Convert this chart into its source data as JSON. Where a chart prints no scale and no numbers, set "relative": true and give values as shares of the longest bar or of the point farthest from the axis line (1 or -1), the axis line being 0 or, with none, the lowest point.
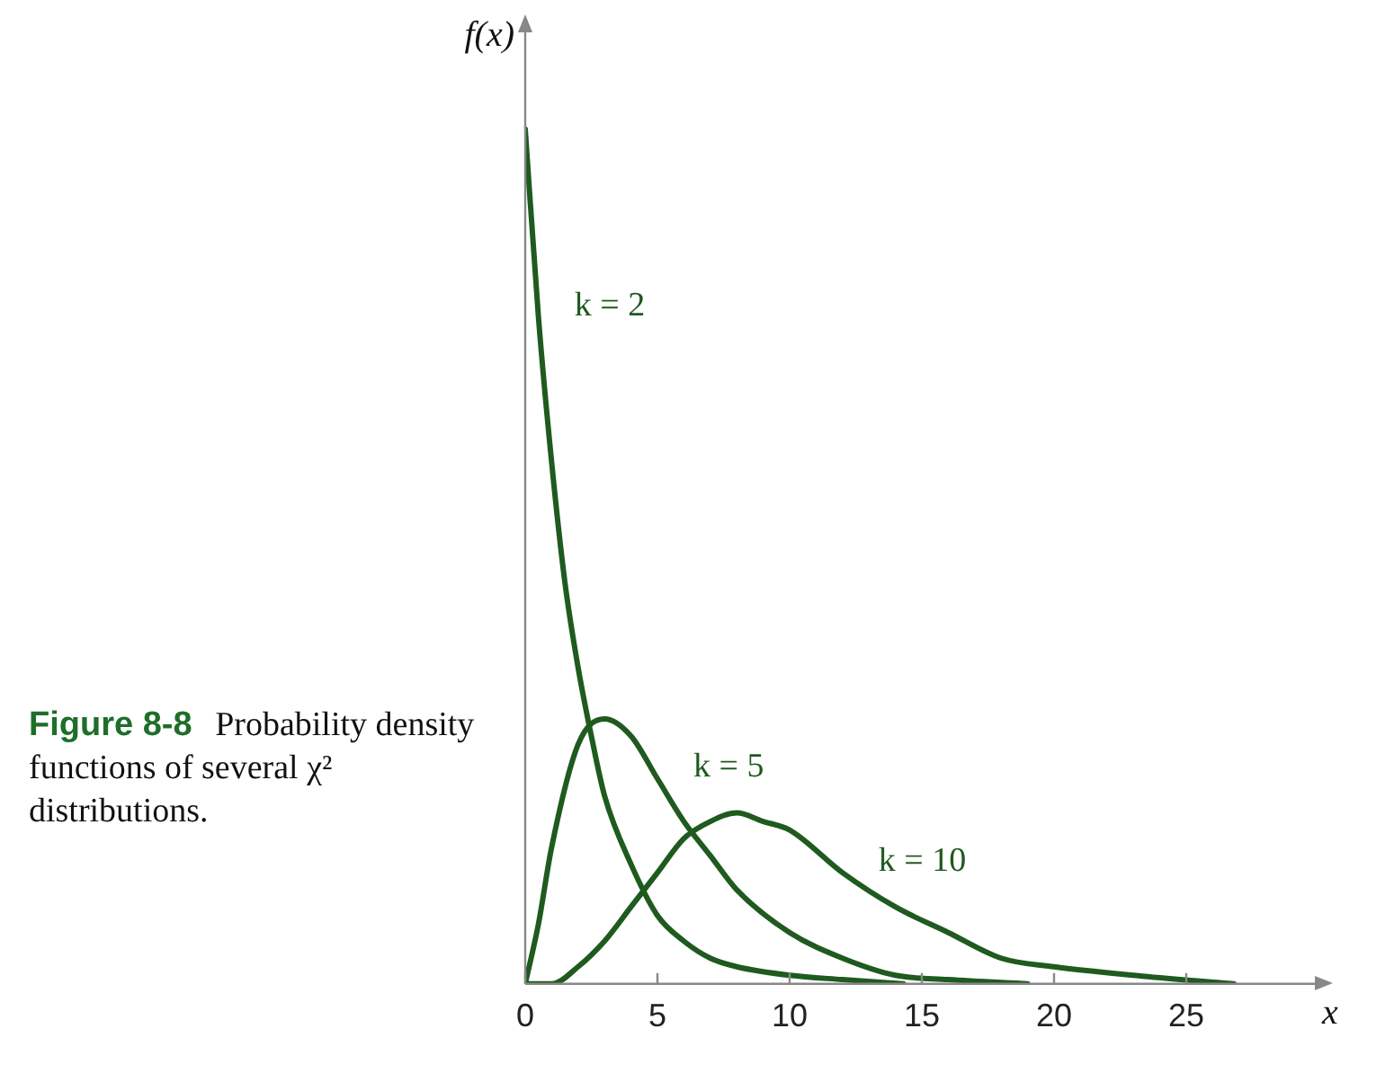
{
  "chart_data": {
    "type": "line",
    "relative": true,
    "xlabel": "x",
    "ylabel": "f(x)",
    "xlim": [
      0,
      30
    ],
    "xticks": [
      0,
      5,
      10,
      15,
      20,
      25
    ],
    "grid": false,
    "legend": false,
    "marker": "none",
    "line_style": "solid",
    "series": [
      {
        "name": "k = 2",
        "color": "#1f5a1f",
        "x": [
          0,
          0.5,
          1,
          1.5,
          2,
          2.5,
          3,
          4,
          5,
          6,
          7,
          8,
          10,
          12,
          14.3
        ],
        "values": [
          1,
          0.78,
          0.61,
          0.47,
          0.37,
          0.29,
          0.22,
          0.14,
          0.08,
          0.05,
          0.03,
          0.02,
          0.01,
          0.005,
          0
        ]
      },
      {
        "name": "k = 5",
        "color": "#1f5a1f",
        "x": [
          0,
          0.5,
          1,
          2,
          3,
          4,
          5,
          6,
          7,
          8,
          10,
          12,
          14,
          16,
          19
        ],
        "values": [
          0,
          0.07,
          0.16,
          0.28,
          0.31,
          0.29,
          0.24,
          0.19,
          0.15,
          0.11,
          0.06,
          0.03,
          0.01,
          0.005,
          0
        ]
      },
      {
        "name": "k = 10",
        "color": "#1f5a1f",
        "x": [
          0,
          1,
          2,
          3,
          4,
          5,
          6,
          7,
          8,
          9,
          10,
          12,
          14,
          16,
          18,
          20,
          23,
          26.8
        ],
        "values": [
          0,
          0,
          0.02,
          0.05,
          0.09,
          0.13,
          0.17,
          0.19,
          0.2,
          0.19,
          0.18,
          0.13,
          0.09,
          0.06,
          0.03,
          0.02,
          0.01,
          0
        ]
      }
    ],
    "annotations": [
      "Figure 8-8",
      "Probability density functions of several χ² distributions."
    ]
  }
}
